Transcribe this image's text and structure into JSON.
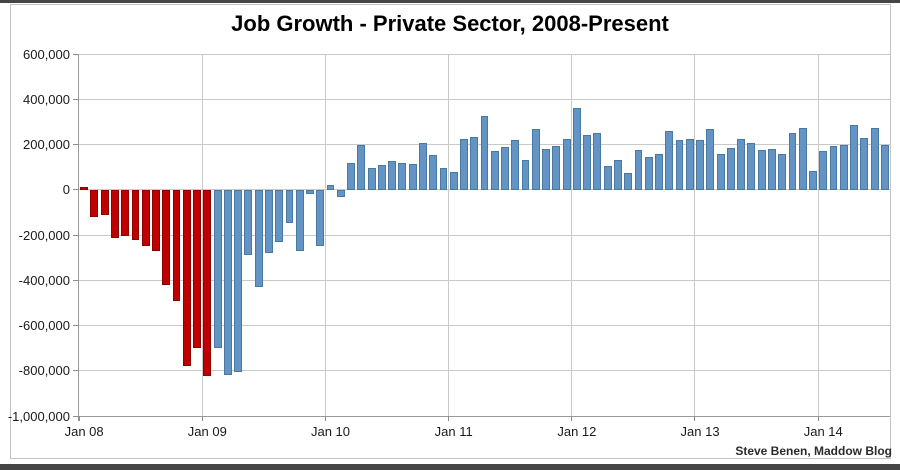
{
  "page": {
    "title": "Job Growth - Private Sector, 2008-Present",
    "attribution": "Steve Benen, Maddow Blog"
  },
  "colors": {
    "loss_era_bar_fill": "#c00000",
    "loss_era_bar_border": "#8e0000",
    "recovery_era_bar_fill": "#6494c6",
    "recovery_era_bar_border": "#49799f",
    "gridline": "#c9c9c9",
    "axis": "#999999"
  },
  "chart_data": {
    "type": "bar",
    "title": "Job Growth - Private Sector, 2008-Present",
    "xlabel": "",
    "ylabel": "",
    "ylim": [
      -1000000,
      600000
    ],
    "grid": "on",
    "legend": "none",
    "y_tick_values": [
      600000,
      400000,
      200000,
      0,
      -200000,
      -400000,
      -600000,
      -800000,
      -1000000
    ],
    "y_tick_labels": [
      "600,000",
      "400,000",
      "200,000",
      "0",
      "-200,000",
      "-400,000",
      "-600,000",
      "-800,000",
      "-1,000,000"
    ],
    "x_tick_labels": [
      "Jan 08",
      "Jan 09",
      "Jan 10",
      "Jan 11",
      "Jan 12",
      "Jan 13",
      "Jan 14"
    ],
    "x_tick_month_indices": [
      0,
      12,
      24,
      36,
      48,
      60,
      72
    ],
    "red_bar_count": 13,
    "red_bar_note": "Bars Jan 2008 through Jan 2009 are red; Feb 2009 onward are blue",
    "categories": [
      "Jan 08",
      "Feb 08",
      "Mar 08",
      "Apr 08",
      "May 08",
      "Jun 08",
      "Jul 08",
      "Aug 08",
      "Sep 08",
      "Oct 08",
      "Nov 08",
      "Dec 08",
      "Jan 09",
      "Feb 09",
      "Mar 09",
      "Apr 09",
      "May 09",
      "Jun 09",
      "Jul 09",
      "Aug 09",
      "Sep 09",
      "Oct 09",
      "Nov 09",
      "Dec 09",
      "Jan 10",
      "Feb 10",
      "Mar 10",
      "Apr 10",
      "May 10",
      "Jun 10",
      "Jul 10",
      "Aug 10",
      "Sep 10",
      "Oct 10",
      "Nov 10",
      "Dec 10",
      "Jan 11",
      "Feb 11",
      "Mar 11",
      "Apr 11",
      "May 11",
      "Jun 11",
      "Jul 11",
      "Aug 11",
      "Sep 11",
      "Oct 11",
      "Nov 11",
      "Dec 11",
      "Jan 12",
      "Feb 12",
      "Mar 12",
      "Apr 12",
      "May 12",
      "Jun 12",
      "Jul 12",
      "Aug 12",
      "Sep 12",
      "Oct 12",
      "Nov 12",
      "Dec 12",
      "Jan 13",
      "Feb 13",
      "Mar 13",
      "Apr 13",
      "May 13",
      "Jun 13",
      "Jul 13",
      "Aug 13",
      "Sep 13",
      "Oct 13",
      "Nov 13",
      "Dec 13",
      "Jan 14",
      "Feb 14",
      "Mar 14",
      "Apr 14",
      "May 14",
      "Jun 14",
      "Jul 14"
    ],
    "values": [
      10000,
      -120000,
      -110000,
      -215000,
      -205000,
      -220000,
      -250000,
      -270000,
      -420000,
      -490000,
      -780000,
      -700000,
      -825000,
      -700000,
      -820000,
      -805000,
      -290000,
      -430000,
      -280000,
      -230000,
      -145000,
      -270000,
      -20000,
      -250000,
      20000,
      -30000,
      120000,
      200000,
      95000,
      110000,
      125000,
      120000,
      115000,
      205000,
      155000,
      95000,
      80000,
      225000,
      235000,
      325000,
      170000,
      190000,
      220000,
      130000,
      270000,
      180000,
      195000,
      225000,
      360000,
      240000,
      250000,
      105000,
      130000,
      75000,
      175000,
      145000,
      160000,
      260000,
      220000,
      225000,
      220000,
      270000,
      160000,
      185000,
      225000,
      205000,
      175000,
      180000,
      160000,
      250000,
      275000,
      85000,
      170000,
      195000,
      200000,
      285000,
      230000,
      275000,
      200000
    ]
  }
}
